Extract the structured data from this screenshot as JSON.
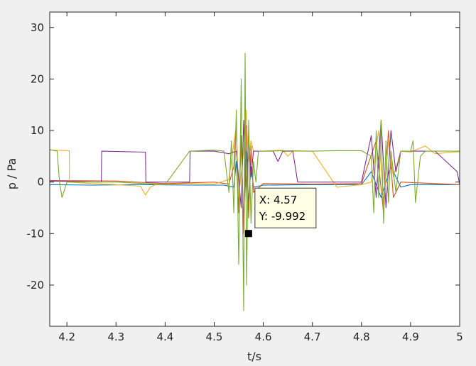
{
  "chart_data": {
    "type": "line",
    "xlabel": "t/s",
    "ylabel": "p / Pa",
    "xlim": [
      4.165,
      5.0
    ],
    "ylim": [
      -28,
      33
    ],
    "xticks": [
      4.2,
      4.3,
      4.4,
      4.5,
      4.6,
      4.7,
      4.8,
      4.9,
      5
    ],
    "yticks": [
      -20,
      -10,
      0,
      10,
      20,
      30
    ],
    "xtick_labels": [
      "4.2",
      "4.3",
      "4.4",
      "4.5",
      "4.6",
      "4.7",
      "4.8",
      "4.9",
      "5"
    ],
    "ytick_labels": [
      "-20",
      "-10",
      "0",
      "10",
      "20",
      "30"
    ],
    "grid": false,
    "series": [
      {
        "color": "#0072BD",
        "x": [
          4.165,
          4.25,
          4.35,
          4.45,
          4.52,
          4.54,
          4.545,
          4.55,
          4.555,
          4.56,
          4.565,
          4.57,
          4.575,
          4.58,
          4.6,
          4.7,
          4.8,
          4.82,
          4.84,
          4.86,
          4.88,
          4.9,
          5.0
        ],
        "y": [
          -0.5,
          -0.6,
          -0.5,
          -0.6,
          -0.6,
          -1,
          4,
          -5,
          8,
          -8,
          6,
          -4,
          3,
          -1,
          -0.6,
          -0.5,
          -0.5,
          2,
          -3,
          3,
          -1,
          -0.5,
          -0.5
        ]
      },
      {
        "color": "#D95319",
        "x": [
          4.165,
          4.3,
          4.4,
          4.5,
          4.53,
          4.54,
          4.545,
          4.55,
          4.555,
          4.56,
          4.565,
          4.57,
          4.575,
          4.58,
          4.6,
          4.7,
          4.8,
          4.83,
          4.845,
          4.855,
          4.865,
          4.88,
          4.95,
          5.0
        ],
        "y": [
          0.3,
          0.2,
          -0.3,
          0,
          -0.4,
          3,
          12,
          -6,
          9,
          -10,
          11,
          -7,
          7,
          -2,
          -0.3,
          -0.4,
          -0.3,
          8,
          -6,
          10,
          -3,
          0,
          -0.3,
          -0.5
        ]
      },
      {
        "color": "#EDB120",
        "x": [
          4.165,
          4.205,
          4.2051,
          4.25,
          4.3,
          4.35,
          4.36,
          4.37,
          4.38,
          4.45,
          4.5,
          4.53,
          4.545,
          4.55,
          4.56,
          4.565,
          4.57,
          4.575,
          4.58,
          4.6,
          4.64,
          4.65,
          4.66,
          4.7,
          4.75,
          4.8,
          4.82,
          4.835,
          4.845,
          4.855,
          4.865,
          4.88,
          4.9,
          4.93,
          4.95,
          5.0
        ],
        "y": [
          6.2,
          6.1,
          0,
          -0.3,
          -0.5,
          -0.8,
          -2.5,
          -1,
          -0.5,
          -0.3,
          -0.4,
          0.5,
          11,
          -3,
          6,
          14,
          4,
          8,
          6,
          6,
          6.2,
          5,
          6,
          6,
          -1,
          -0.5,
          0,
          10,
          -4,
          8,
          1,
          6,
          5.8,
          7,
          5.5,
          5.9
        ]
      },
      {
        "color": "#7E2F8E",
        "x": [
          4.165,
          4.27,
          4.271,
          4.36,
          4.361,
          4.45,
          4.451,
          4.5,
          4.53,
          4.545,
          4.555,
          4.56,
          4.565,
          4.57,
          4.575,
          4.58,
          4.62,
          4.63,
          4.64,
          4.66,
          4.67,
          4.7,
          4.8,
          4.82,
          4.83,
          4.84,
          4.85,
          4.86,
          4.87,
          4.88,
          4.95,
          4.995,
          5.0
        ],
        "y": [
          0.2,
          0,
          6,
          5.8,
          0,
          0,
          6,
          6,
          5.5,
          6,
          -5,
          12,
          -3,
          9,
          1,
          6,
          6,
          4,
          6,
          6,
          0,
          0,
          0,
          9,
          -3,
          12,
          -5,
          10,
          2,
          6,
          6,
          2,
          -0.5
        ]
      },
      {
        "color": "#77AC30",
        "x": [
          4.165,
          4.18,
          4.185,
          4.19,
          4.2,
          4.3,
          4.4,
          4.45,
          4.5,
          4.52,
          4.53,
          4.535,
          4.54,
          4.545,
          4.55,
          4.555,
          4.56,
          4.563,
          4.566,
          4.57,
          4.575,
          4.58,
          4.585,
          4.59,
          4.6,
          4.65,
          4.7,
          4.75,
          4.8,
          4.82,
          4.825,
          4.83,
          4.835,
          4.84,
          4.845,
          4.85,
          4.855,
          4.86,
          4.87,
          4.88,
          4.9,
          4.905,
          4.91,
          4.92,
          4.93,
          4.95,
          5.0
        ],
        "y": [
          6.3,
          6,
          0,
          -3,
          0,
          0,
          -0.5,
          6,
          6.2,
          6,
          -2,
          8,
          -6,
          14,
          -16,
          20,
          -25,
          25,
          -20,
          12,
          -8,
          4,
          0,
          6,
          6,
          6.1,
          6,
          6.1,
          6.1,
          5,
          -6,
          10,
          -3,
          12,
          -8,
          8,
          -4,
          6,
          -2,
          6,
          6,
          8,
          -4,
          5,
          6,
          6,
          6
        ]
      }
    ],
    "datatip": {
      "x_label": "X: 4.57",
      "y_label": "Y: -9.992",
      "x": 4.57,
      "y": -9.992
    }
  }
}
